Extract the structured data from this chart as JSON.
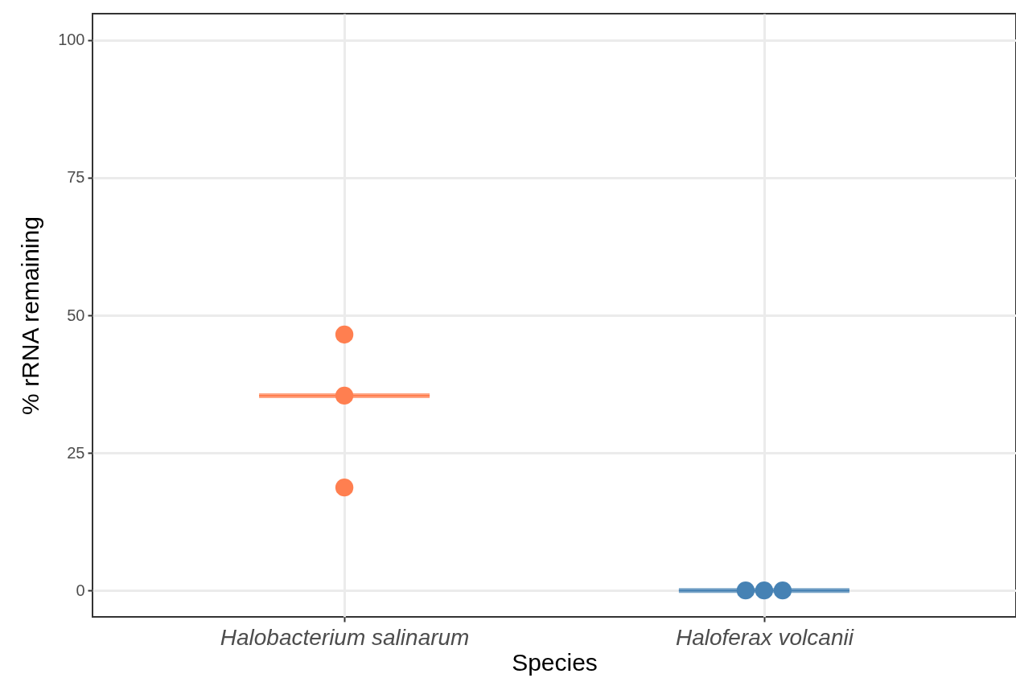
{
  "chart_data": {
    "type": "box",
    "xlabel": "Species",
    "ylabel": "% rRNA remaining",
    "categories": [
      "Halobacterium salinarum",
      "Haloferax volcanii"
    ],
    "boxes": [
      {
        "low": 35.4,
        "q1": 35.4,
        "median": 35.4,
        "q3": 35.4,
        "high": 35.4
      },
      {
        "low": 0,
        "q1": 0,
        "median": 0,
        "q3": 0,
        "high": 0
      }
    ],
    "colors": [
      "#ff7f50",
      "#4682b4"
    ],
    "series": [
      {
        "type": "scatter",
        "color": "#ff7f50",
        "x": [
          "Halobacterium salinarum",
          "Halobacterium salinarum",
          "Halobacterium salinarum"
        ],
        "values": [
          46.5,
          35.4,
          18.7
        ]
      },
      {
        "type": "scatter",
        "color": "#4682b4",
        "x": [
          "Haloferax volcanii",
          "Haloferax volcanii",
          "Haloferax volcanii"
        ],
        "values": [
          0,
          0,
          0
        ]
      }
    ],
    "ylim": [
      -4.8,
      104.8
    ],
    "yticks": [
      0,
      25,
      50,
      75,
      100
    ],
    "grid": true,
    "marker": "circle"
  }
}
